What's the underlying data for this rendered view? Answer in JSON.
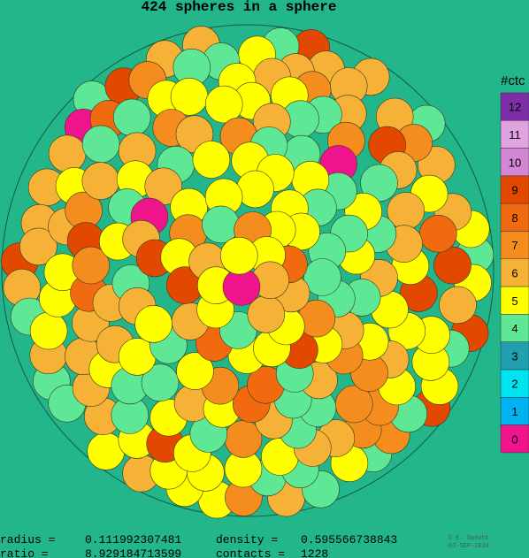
{
  "title": "424 spheres in a sphere",
  "legend": {
    "title": "#ctc",
    "items": [
      {
        "label": 12,
        "color": "#7e2fa8"
      },
      {
        "label": 11,
        "color": "#e2a2e2"
      },
      {
        "label": 10,
        "color": "#d386d3"
      },
      {
        "label": 9,
        "color": "#e24800"
      },
      {
        "label": 8,
        "color": "#f26a10"
      },
      {
        "label": 7,
        "color": "#f58c1e"
      },
      {
        "label": 6,
        "color": "#f6b236"
      },
      {
        "label": 5,
        "color": "#ffff00"
      },
      {
        "label": 4,
        "color": "#5ee896"
      },
      {
        "label": 3,
        "color": "#1f9fb0"
      },
      {
        "label": 2,
        "color": "#00e3f0"
      },
      {
        "label": 1,
        "color": "#00b2f0"
      },
      {
        "label": 0,
        "color": "#f0148c"
      }
    ]
  },
  "stats": {
    "radius_label": "radius =",
    "radius": 0.111992307481,
    "density_label": "density  =",
    "density": 0.595566738843,
    "ratio_label": "ratio  =",
    "ratio": 8.929184713599,
    "contacts_label": "contacts =",
    "contacts": 1228
  },
  "credit": "© E. Specht",
  "date": "03-SEP-2024"
}
